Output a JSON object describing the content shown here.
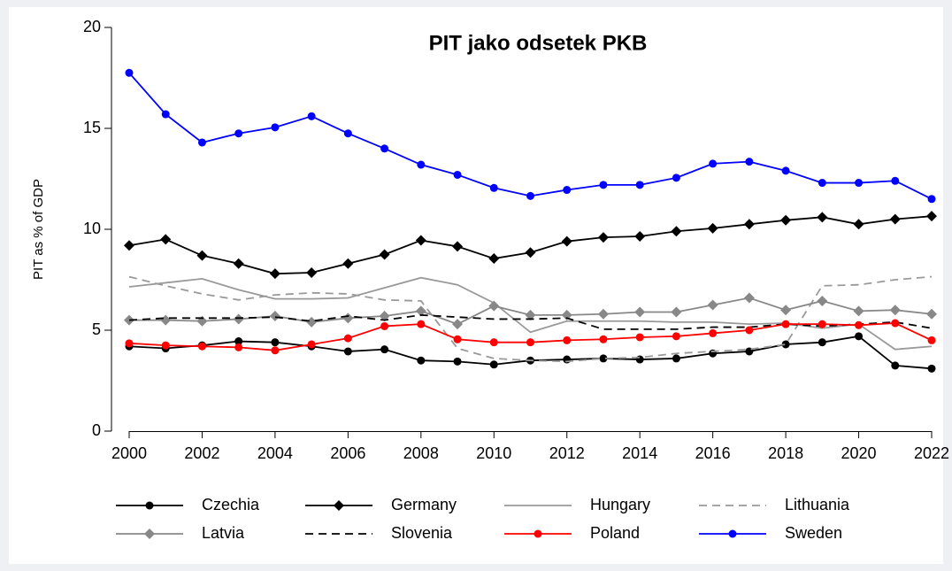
{
  "chart_data": {
    "type": "line",
    "title": "PIT jako odsetek PKB",
    "ylabel": "PIT as % of GDP",
    "x": [
      2000,
      2001,
      2002,
      2003,
      2004,
      2005,
      2006,
      2007,
      2008,
      2009,
      2010,
      2011,
      2012,
      2013,
      2014,
      2015,
      2016,
      2017,
      2018,
      2019,
      2020,
      2021,
      2022
    ],
    "xlim": [
      2000,
      2022
    ],
    "xticks": [
      2000,
      2002,
      2004,
      2006,
      2008,
      2010,
      2012,
      2014,
      2016,
      2018,
      2020,
      2022
    ],
    "ylim": [
      0,
      20
    ],
    "yticks": [
      0,
      5,
      10,
      15,
      20
    ],
    "legend": "bottom",
    "series": [
      {
        "name": "Czechia",
        "color": "#000000",
        "marker": "circle",
        "dash": false,
        "values": [
          4.2,
          4.1,
          4.25,
          4.45,
          4.4,
          4.2,
          3.95,
          4.05,
          3.5,
          3.45,
          3.3,
          3.5,
          3.55,
          3.6,
          3.55,
          3.6,
          3.85,
          3.95,
          4.3,
          4.4,
          4.7,
          3.25,
          3.1
        ]
      },
      {
        "name": "Germany",
        "color": "#000000",
        "marker": "diamond",
        "dash": false,
        "values": [
          9.2,
          9.5,
          8.7,
          8.3,
          7.8,
          7.85,
          8.3,
          8.75,
          9.45,
          9.15,
          8.55,
          8.85,
          9.4,
          9.6,
          9.65,
          9.9,
          10.05,
          10.25,
          10.45,
          10.6,
          10.25,
          10.5,
          10.65
        ]
      },
      {
        "name": "Hungary",
        "color": "#999999",
        "marker": "none",
        "dash": false,
        "values": [
          7.15,
          7.35,
          7.55,
          7.0,
          6.55,
          6.55,
          6.6,
          7.1,
          7.6,
          7.25,
          6.35,
          4.9,
          5.45,
          5.45,
          5.45,
          5.4,
          5.4,
          5.3,
          5.35,
          5.1,
          5.3,
          4.05,
          4.2
        ]
      },
      {
        "name": "Lithuania",
        "color": "#999999",
        "marker": "none",
        "dash": true,
        "values": [
          7.65,
          7.2,
          6.8,
          6.5,
          6.75,
          6.85,
          6.8,
          6.5,
          6.45,
          4.1,
          3.6,
          3.5,
          3.45,
          3.6,
          3.65,
          3.85,
          3.95,
          4.05,
          4.3,
          7.2,
          7.25,
          7.5,
          7.65
        ]
      },
      {
        "name": "Latvia",
        "color": "#888888",
        "marker": "diamond",
        "dash": false,
        "values": [
          5.5,
          5.5,
          5.45,
          5.55,
          5.7,
          5.4,
          5.6,
          5.7,
          5.95,
          5.3,
          6.2,
          5.75,
          5.75,
          5.8,
          5.9,
          5.9,
          6.25,
          6.6,
          6.0,
          6.45,
          5.95,
          6.0,
          5.8
        ]
      },
      {
        "name": "Slovenia",
        "color": "#000000",
        "marker": "none",
        "dash": true,
        "values": [
          5.5,
          5.6,
          5.6,
          5.6,
          5.65,
          5.45,
          5.7,
          5.5,
          5.75,
          5.65,
          5.55,
          5.55,
          5.6,
          5.05,
          5.05,
          5.05,
          5.15,
          5.15,
          5.3,
          5.2,
          5.3,
          5.4,
          5.1
        ]
      },
      {
        "name": "Poland",
        "color": "#ff0000",
        "marker": "circle",
        "dash": false,
        "values": [
          4.35,
          4.25,
          4.2,
          4.15,
          4.0,
          4.3,
          4.6,
          5.2,
          5.3,
          4.55,
          4.4,
          4.4,
          4.5,
          4.55,
          4.65,
          4.7,
          4.85,
          5.0,
          5.3,
          5.3,
          5.25,
          5.35,
          4.5
        ]
      },
      {
        "name": "Sweden",
        "color": "#0000ff",
        "marker": "circle",
        "dash": false,
        "values": [
          17.75,
          15.7,
          14.3,
          14.75,
          15.05,
          15.6,
          14.75,
          14.0,
          13.2,
          12.7,
          12.05,
          11.65,
          11.95,
          12.2,
          12.2,
          12.55,
          13.25,
          13.35,
          12.9,
          12.3,
          12.3,
          12.4,
          11.5
        ]
      }
    ]
  }
}
